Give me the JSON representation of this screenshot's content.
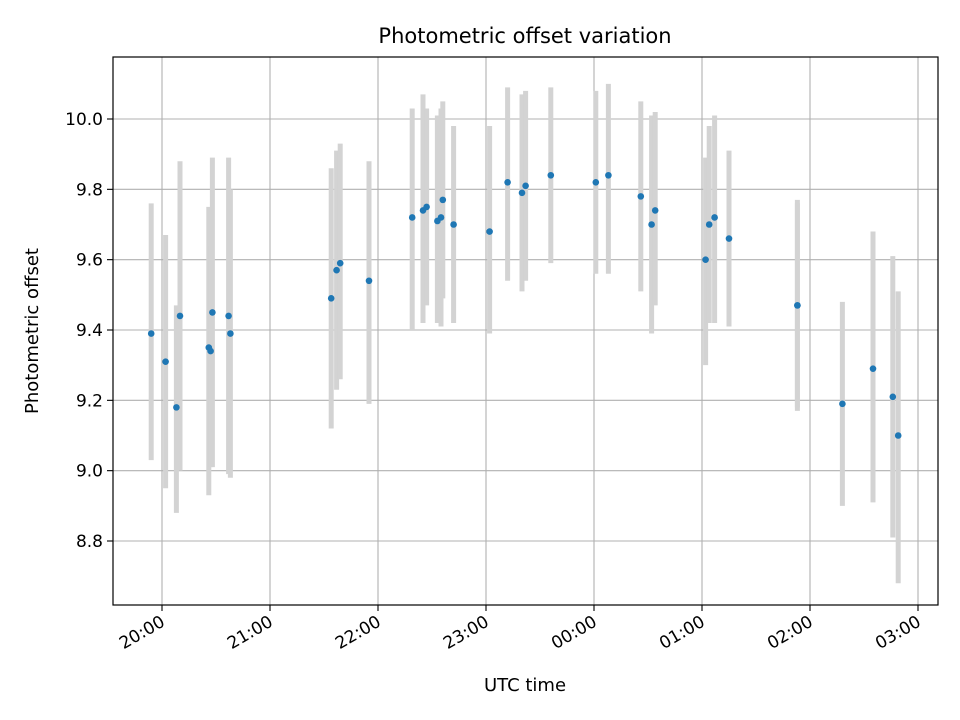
{
  "chart_data": {
    "type": "scatter",
    "title": "Photometric offset variation",
    "xlabel": "UTC time",
    "ylabel": "Photometric offset",
    "x_ticks": [
      "20:00",
      "21:00",
      "22:00",
      "23:00",
      "00:00",
      "01:00",
      "02:00",
      "03:00"
    ],
    "y_ticks": [
      "8.8",
      "9.0",
      "9.2",
      "9.4",
      "9.6",
      "9.8",
      "10.0"
    ],
    "ylim": [
      8.62,
      10.18
    ],
    "xlim": [
      "19:38",
      "21:00 +6h"
    ],
    "grid": true,
    "colors": {
      "point": "#1f77b4",
      "errorbar": "#d3d3d3",
      "grid": "#b0b0b0"
    },
    "series": [
      {
        "points": [
          {
            "x": "19:54",
            "y": 9.39,
            "lo": 9.03,
            "hi": 9.76
          },
          {
            "x": "20:02",
            "y": 9.31,
            "lo": 8.95,
            "hi": 9.67
          },
          {
            "x": "20:08",
            "y": 9.18,
            "lo": 8.88,
            "hi": 9.47
          },
          {
            "x": "20:10",
            "y": 9.44,
            "lo": 9.0,
            "hi": 9.88
          },
          {
            "x": "20:26",
            "y": 9.35,
            "lo": 8.93,
            "hi": 9.75
          },
          {
            "x": "20:27",
            "y": 9.34,
            "lo": 9.01,
            "hi": 9.64
          },
          {
            "x": "20:28",
            "y": 9.45,
            "lo": 9.01,
            "hi": 9.89
          },
          {
            "x": "20:37",
            "y": 9.44,
            "lo": 8.99,
            "hi": 9.89
          },
          {
            "x": "20:38",
            "y": 9.39,
            "lo": 8.98,
            "hi": 9.8
          },
          {
            "x": "21:34",
            "y": 9.49,
            "lo": 9.12,
            "hi": 9.86
          },
          {
            "x": "21:37",
            "y": 9.57,
            "lo": 9.23,
            "hi": 9.91
          },
          {
            "x": "21:39",
            "y": 9.59,
            "lo": 9.26,
            "hi": 9.93
          },
          {
            "x": "21:55",
            "y": 9.54,
            "lo": 9.19,
            "hi": 9.88
          },
          {
            "x": "22:19",
            "y": 9.72,
            "lo": 9.4,
            "hi": 10.03
          },
          {
            "x": "22:25",
            "y": 9.74,
            "lo": 9.42,
            "hi": 10.07
          },
          {
            "x": "22:27",
            "y": 9.75,
            "lo": 9.47,
            "hi": 10.03
          },
          {
            "x": "22:33",
            "y": 9.71,
            "lo": 9.42,
            "hi": 10.01
          },
          {
            "x": "22:35",
            "y": 9.72,
            "lo": 9.41,
            "hi": 10.03
          },
          {
            "x": "22:36",
            "y": 9.77,
            "lo": 9.49,
            "hi": 10.05
          },
          {
            "x": "22:42",
            "y": 9.7,
            "lo": 9.42,
            "hi": 9.98
          },
          {
            "x": "23:02",
            "y": 9.68,
            "lo": 9.39,
            "hi": 9.98
          },
          {
            "x": "23:12",
            "y": 9.82,
            "lo": 9.54,
            "hi": 10.09
          },
          {
            "x": "23:20",
            "y": 9.79,
            "lo": 9.51,
            "hi": 10.07
          },
          {
            "x": "23:22",
            "y": 9.81,
            "lo": 9.54,
            "hi": 10.08
          },
          {
            "x": "23:36",
            "y": 9.84,
            "lo": 9.59,
            "hi": 10.09
          },
          {
            "x": "00:01",
            "y": 9.82,
            "lo": 9.56,
            "hi": 10.08
          },
          {
            "x": "00:08",
            "y": 9.84,
            "lo": 9.56,
            "hi": 10.1
          },
          {
            "x": "00:26",
            "y": 9.78,
            "lo": 9.51,
            "hi": 10.05
          },
          {
            "x": "00:32",
            "y": 9.7,
            "lo": 9.39,
            "hi": 10.01
          },
          {
            "x": "00:34",
            "y": 9.74,
            "lo": 9.47,
            "hi": 10.02
          },
          {
            "x": "01:02",
            "y": 9.6,
            "lo": 9.3,
            "hi": 9.89
          },
          {
            "x": "01:04",
            "y": 9.7,
            "lo": 9.42,
            "hi": 9.98
          },
          {
            "x": "01:07",
            "y": 9.72,
            "lo": 9.42,
            "hi": 10.01
          },
          {
            "x": "01:15",
            "y": 9.66,
            "lo": 9.41,
            "hi": 9.91
          },
          {
            "x": "01:53",
            "y": 9.47,
            "lo": 9.17,
            "hi": 9.77
          },
          {
            "x": "01:53",
            "y": 9.47,
            "lo": 9.18,
            "hi": 9.76
          },
          {
            "x": "02:18",
            "y": 9.19,
            "lo": 8.9,
            "hi": 9.48
          },
          {
            "x": "02:35",
            "y": 9.29,
            "lo": 8.91,
            "hi": 9.68
          },
          {
            "x": "02:46",
            "y": 9.21,
            "lo": 8.81,
            "hi": 9.61
          },
          {
            "x": "02:49",
            "y": 9.1,
            "lo": 8.68,
            "hi": 9.51
          }
        ]
      }
    ]
  }
}
